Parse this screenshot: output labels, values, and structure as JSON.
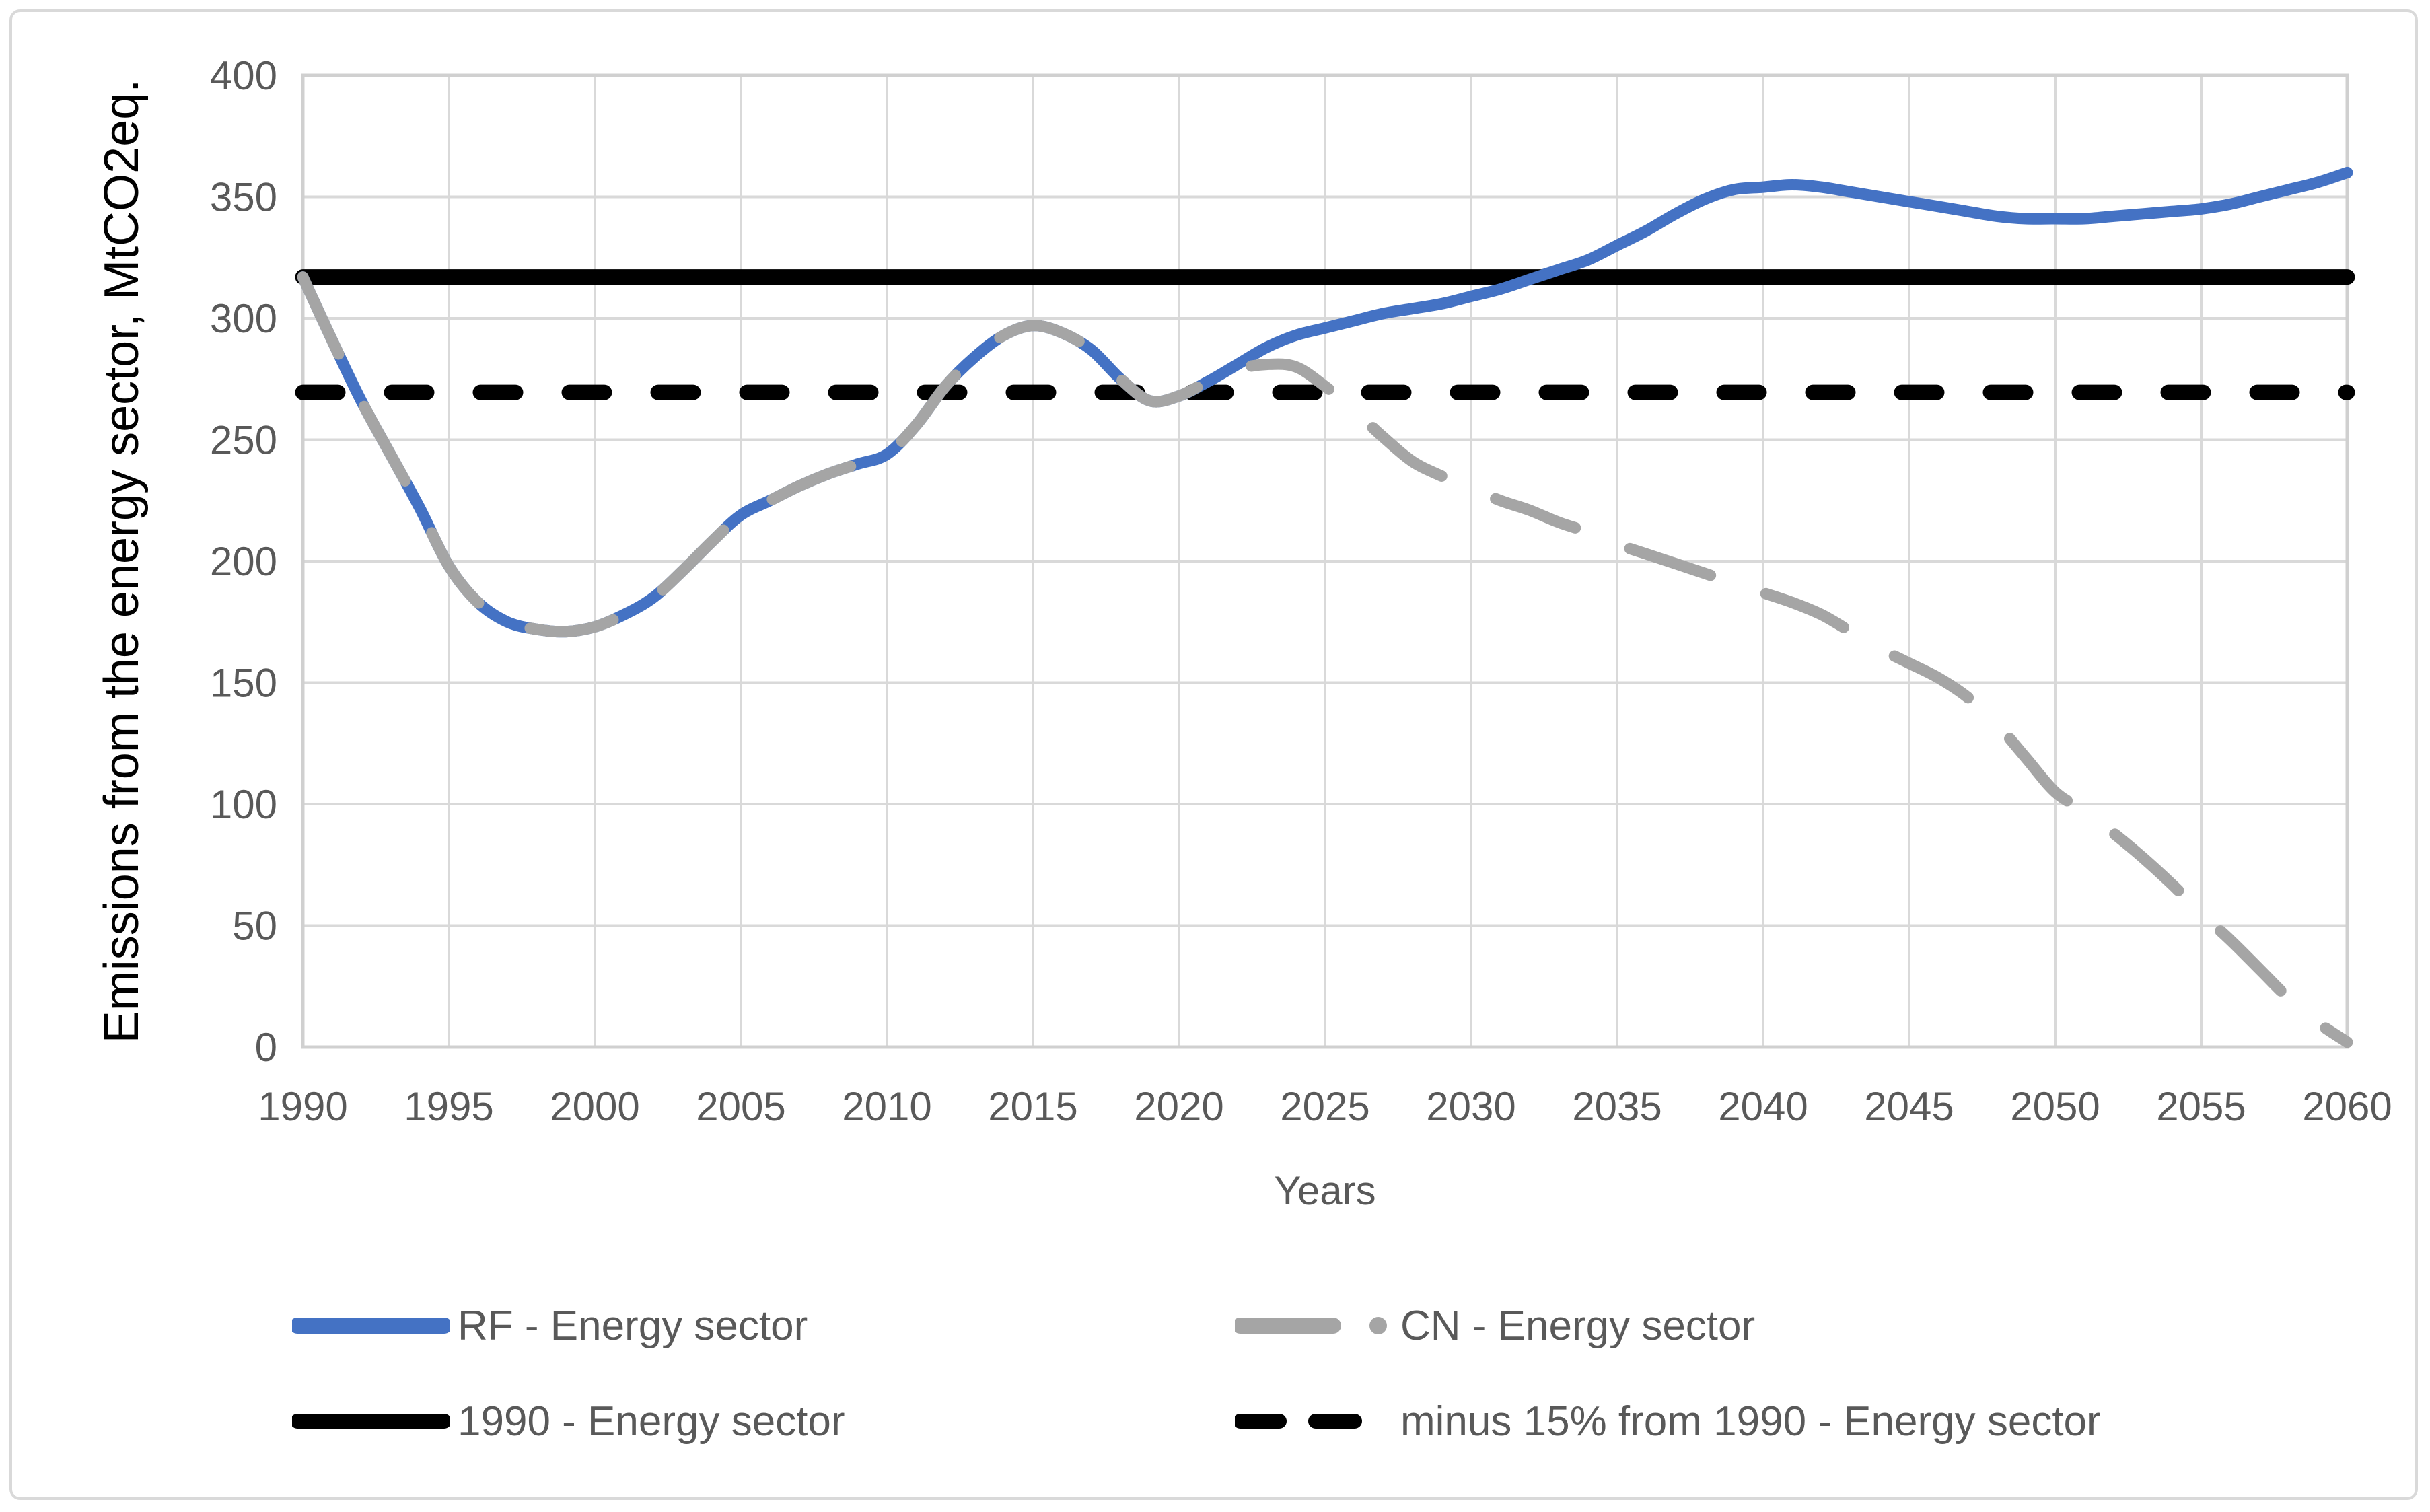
{
  "figure": {
    "background": "#ffffff",
    "border_color": "#d9d9d9"
  },
  "axes": {
    "tick_color": "#595959",
    "grid_color": "#d9d9d9",
    "plot_border_color": "#d0d0d0",
    "x_ticks": [
      1990,
      1995,
      2000,
      2005,
      2010,
      2015,
      2020,
      2025,
      2030,
      2035,
      2040,
      2045,
      2050,
      2055,
      2060
    ],
    "y_ticks": [
      0,
      50,
      100,
      150,
      200,
      250,
      300,
      350,
      400
    ]
  },
  "chart_data": {
    "type": "line",
    "title": "",
    "xlabel": "Years",
    "ylabel": "Emissions from the energy sector, MtCO2eq.",
    "xlim": [
      1990,
      2060
    ],
    "ylim": [
      0,
      400
    ],
    "x_tick_step": 5,
    "y_tick_step": 50,
    "grid": true,
    "legend_position": "bottom",
    "x": [
      1990,
      1991,
      1992,
      1993,
      1994,
      1995,
      1996,
      1997,
      1998,
      1999,
      2000,
      2001,
      2002,
      2003,
      2004,
      2005,
      2006,
      2007,
      2008,
      2009,
      2010,
      2011,
      2012,
      2013,
      2014,
      2015,
      2016,
      2017,
      2018,
      2019,
      2020,
      2021,
      2022,
      2023,
      2024,
      2025,
      2026,
      2027,
      2028,
      2029,
      2030,
      2031,
      2032,
      2033,
      2034,
      2035,
      2036,
      2037,
      2038,
      2039,
      2040,
      2041,
      2042,
      2043,
      2044,
      2045,
      2046,
      2047,
      2048,
      2049,
      2050,
      2051,
      2052,
      2053,
      2054,
      2055,
      2056,
      2057,
      2058,
      2059,
      2060
    ],
    "series": [
      {
        "name": "RF - Energy sector",
        "color": "#4472C4",
        "line_style": "solid",
        "legend_marker": "solid",
        "values": [
          317,
          291,
          266,
          244,
          222,
          198,
          183,
          175,
          172,
          171,
          173,
          178,
          185,
          196,
          208,
          219,
          225,
          231,
          236,
          240,
          244,
          256,
          272,
          284,
          293,
          297,
          294,
          287,
          275,
          266,
          268,
          274,
          281,
          288,
          293,
          296,
          299,
          302,
          304,
          306,
          309,
          312,
          316,
          320,
          324,
          330,
          336,
          343,
          349,
          353,
          354,
          355,
          354,
          352,
          350,
          348,
          346,
          344,
          342,
          341,
          341,
          341,
          342,
          343,
          344,
          345,
          347,
          350,
          353,
          356,
          360
        ]
      },
      {
        "name": "CN - Energy sector",
        "color": "#A5A5A5",
        "line_style": "long-dash",
        "legend_marker": "dash-dot",
        "values": [
          317,
          291,
          266,
          244,
          222,
          198,
          183,
          175,
          172,
          171,
          173,
          178,
          185,
          196,
          208,
          219,
          225,
          231,
          236,
          240,
          244,
          256,
          272,
          284,
          293,
          297,
          294,
          287,
          275,
          266,
          268,
          274,
          279,
          281,
          280,
          272,
          262,
          251,
          241,
          235,
          230,
          225,
          221,
          216,
          212,
          207,
          203,
          199,
          195,
          191,
          187,
          183,
          178,
          171,
          164,
          158,
          152,
          144,
          133,
          119,
          105,
          97,
          88,
          78,
          67,
          55,
          44,
          32,
          20,
          10,
          2
        ]
      },
      {
        "name": "1990 - Energy sector",
        "color": "#000000",
        "line_style": "solid",
        "legend_marker": "solid",
        "constant": 317
      },
      {
        "name": "minus 15% from 1990 - Energy sector",
        "color": "#000000",
        "line_style": "dash",
        "legend_marker": "dash-dash",
        "constant": 269.5
      }
    ]
  }
}
